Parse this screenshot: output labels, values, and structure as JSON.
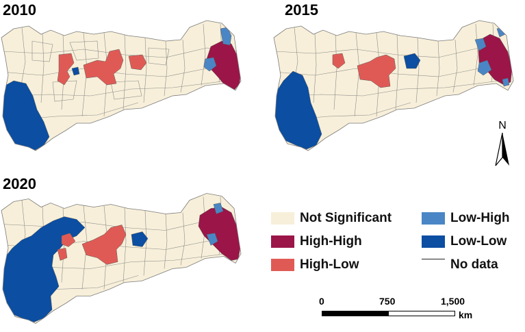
{
  "maps": [
    {
      "year": "2010"
    },
    {
      "year": "2015"
    },
    {
      "year": "2020"
    }
  ],
  "legend": {
    "items": [
      {
        "label": "Not Significant",
        "color": "#f7efd9"
      },
      {
        "label": "High-High",
        "color": "#9b1548"
      },
      {
        "label": "High-Low",
        "color": "#e05a55"
      },
      {
        "label": "Low-High",
        "color": "#4a86c5"
      },
      {
        "label": "Low-Low",
        "color": "#0b4ea2"
      }
    ],
    "nodata_label": "No data"
  },
  "north_arrow": {
    "label": "N"
  },
  "scale_bar": {
    "ticks": [
      "0",
      "750",
      "1,500"
    ],
    "unit": "km"
  },
  "colors": {
    "not_significant": "#f7efd9",
    "high_high": "#9b1548",
    "high_low": "#e05a55",
    "low_high": "#4a86c5",
    "low_low": "#0b4ea2",
    "boundary": "#8a8a8a"
  }
}
